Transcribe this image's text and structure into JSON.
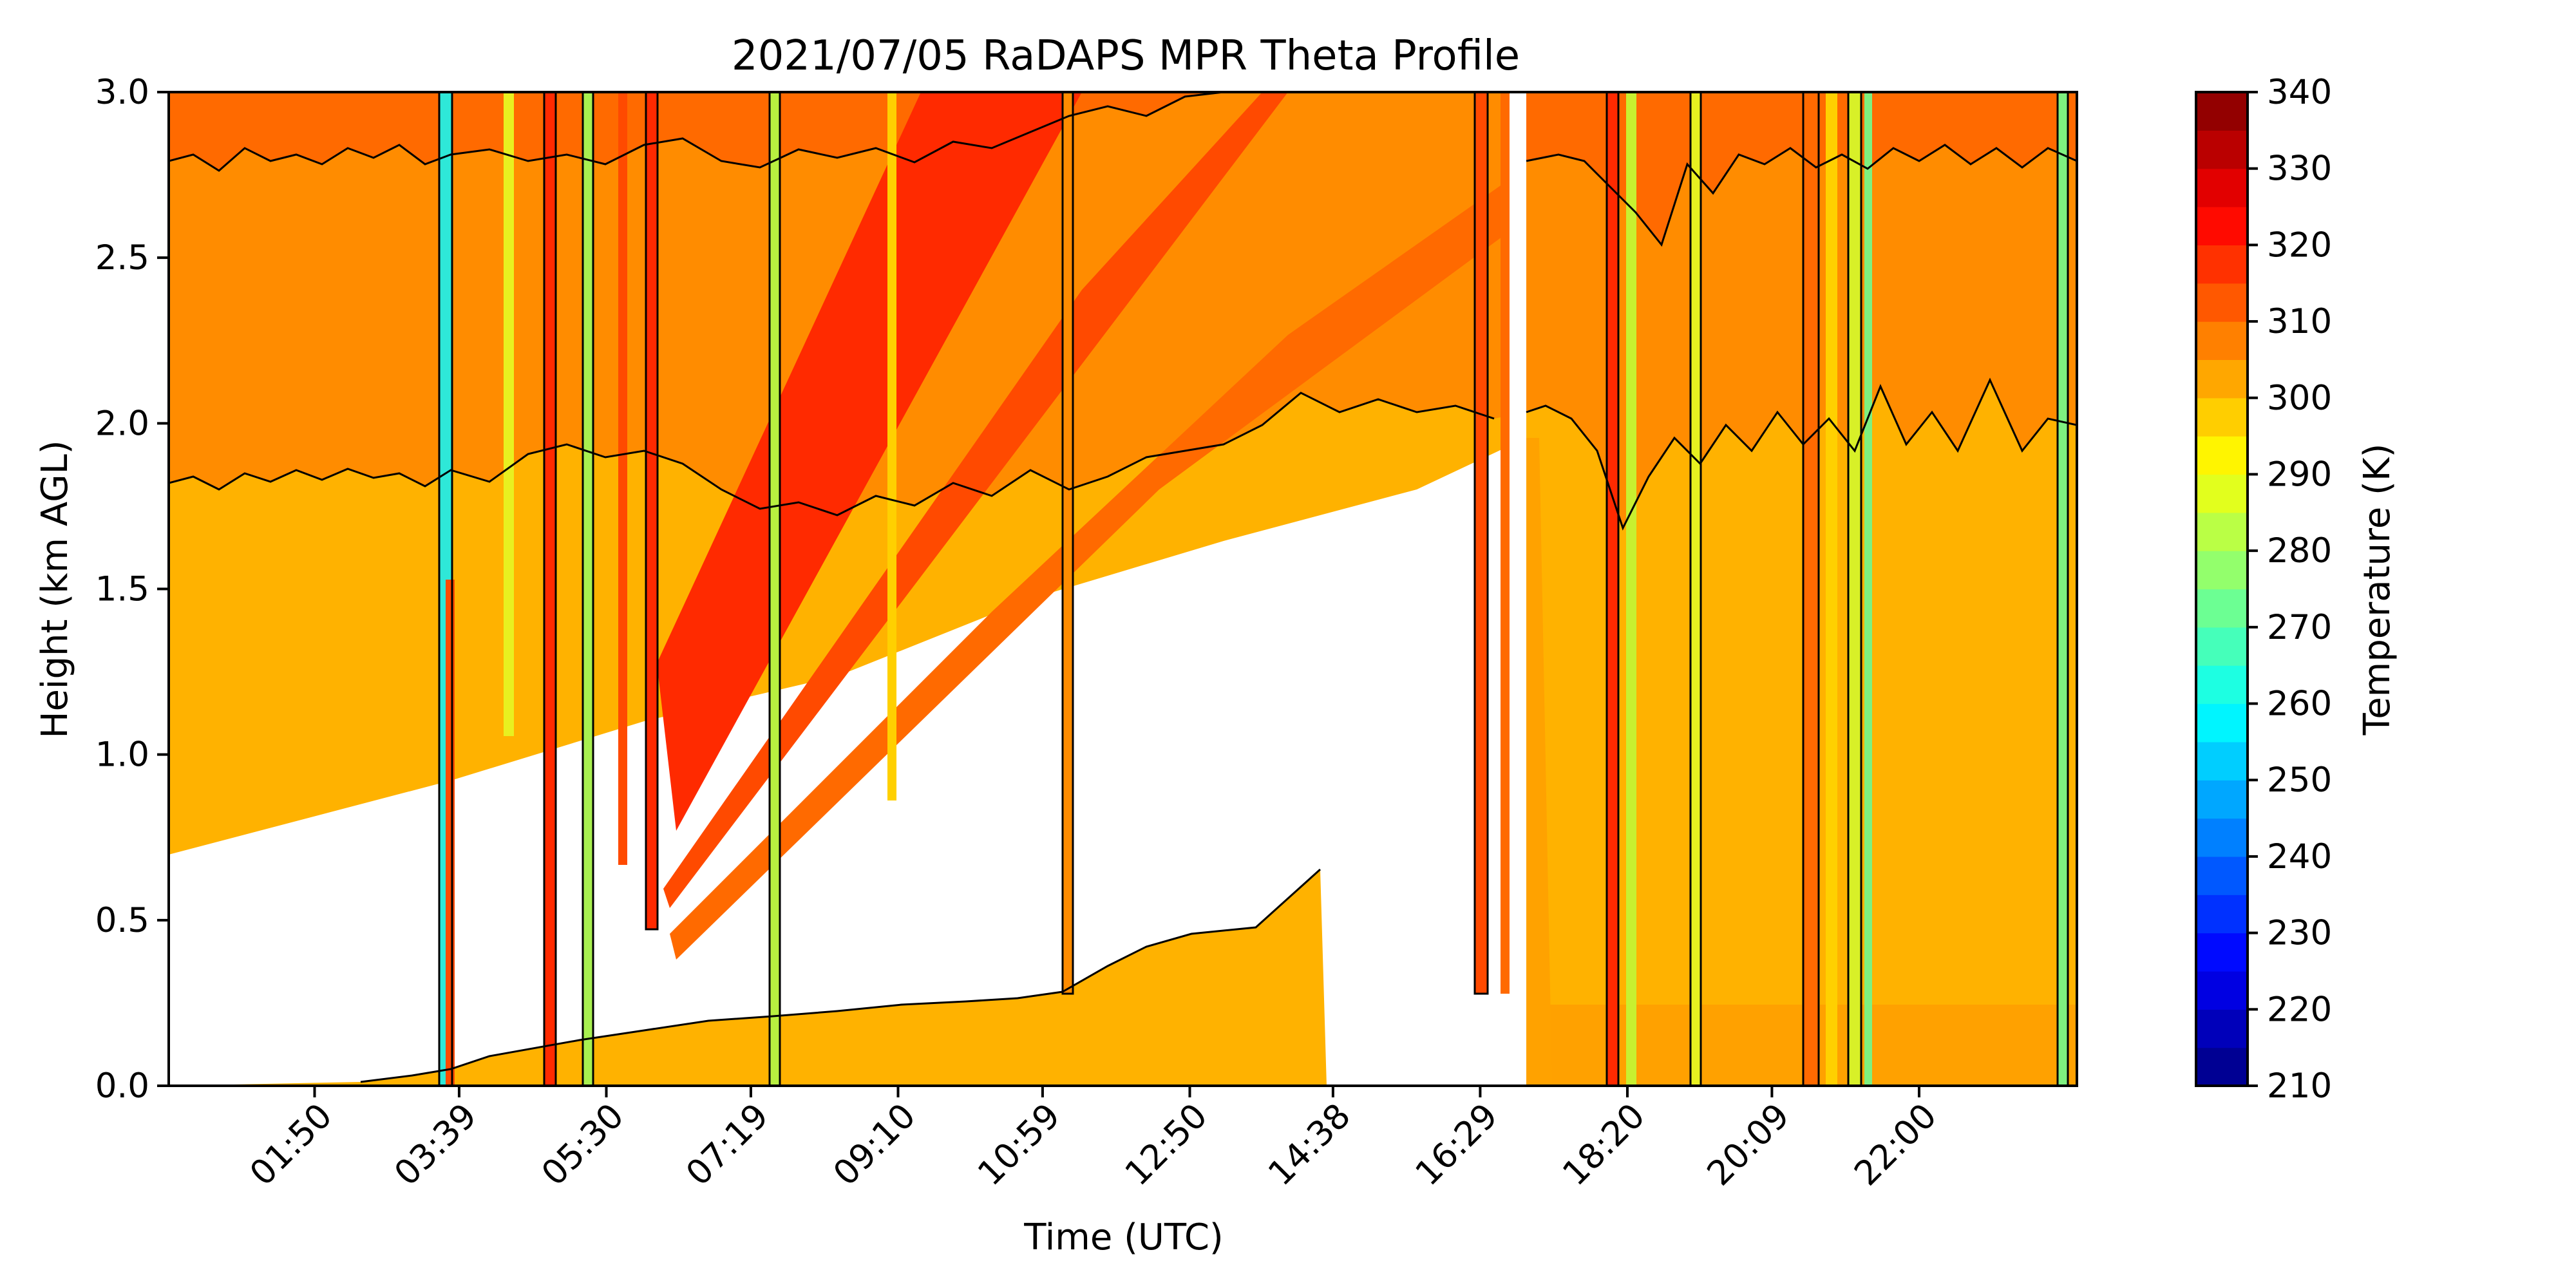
{
  "chart_data": {
    "type": "heatmap",
    "title": "2021/07/05 RaDAPS MPR Theta Profile",
    "xlabel": "Time (UTC)",
    "ylabel": "Height (km AGL)",
    "xlim": [
      "00:00",
      "23:59"
    ],
    "ylim": [
      0.0,
      3.0
    ],
    "x_tick_labels": [
      "01:50",
      "03:39",
      "05:30",
      "07:19",
      "09:10",
      "10:59",
      "12:50",
      "14:38",
      "16:29",
      "18:20",
      "20:09",
      "22:00"
    ],
    "y_ticks": [
      0.0,
      0.5,
      1.0,
      1.5,
      2.0,
      2.5,
      3.0
    ],
    "y_tick_labels": [
      "0.0",
      "0.5",
      "1.0",
      "1.5",
      "2.0",
      "2.5",
      "3.0"
    ],
    "colorbar": {
      "label": "Temperature (K)",
      "range": [
        210,
        340
      ],
      "step": 5,
      "tick_labels": [
        "210",
        "220",
        "230",
        "240",
        "250",
        "260",
        "270",
        "280",
        "290",
        "300",
        "310",
        "320",
        "330",
        "340"
      ],
      "colormap": "jet"
    },
    "level_bands": [
      {
        "range": [
          300,
          305
        ],
        "color": "#ffb200"
      },
      {
        "range": [
          305,
          310
        ],
        "color": "#ff8c00"
      },
      {
        "range": [
          310,
          315
        ],
        "color": "#ff6a00"
      },
      {
        "range": [
          315,
          320
        ],
        "color": "#ff4a00"
      },
      {
        "range": [
          320,
          325
        ],
        "color": "#ff2a00"
      }
    ],
    "profile_summary": [
      {
        "height_km": [
          0.0,
          0.1
        ],
        "theta_k": 305
      },
      {
        "height_km": [
          0.1,
          1.8
        ],
        "theta_k": 302
      },
      {
        "height_km": [
          1.8,
          2.8
        ],
        "theta_k": 308
      },
      {
        "height_km": [
          2.8,
          3.0
        ],
        "theta_k": 312
      }
    ],
    "grid": false,
    "colors": {
      "no_data": "#ffffff",
      "contour_line": "#000000"
    }
  }
}
